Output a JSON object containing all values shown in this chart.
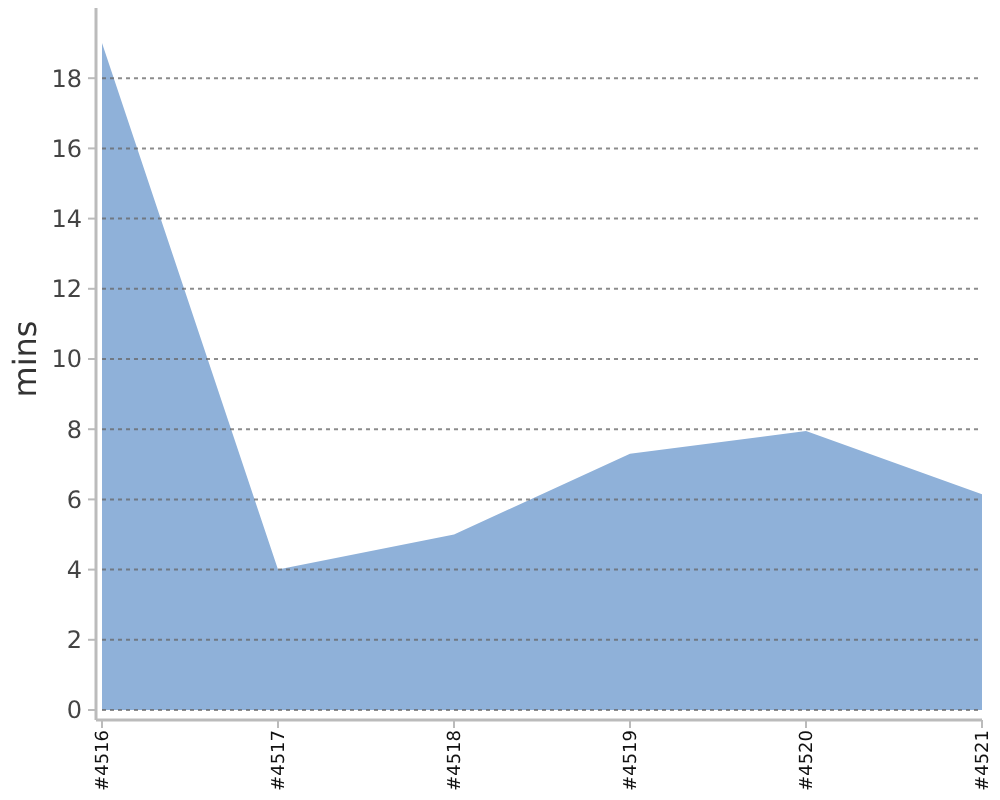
{
  "chart_data": {
    "type": "area",
    "ylabel": "mins",
    "categories": [
      "#4516",
      "#4517",
      "#4518",
      "#4519",
      "#4520",
      "#4521"
    ],
    "values": [
      19.0,
      4.0,
      5.0,
      7.3,
      7.95,
      6.15
    ],
    "color": "#8fb1d9",
    "ylim": [
      0,
      20
    ],
    "yticks": [
      0,
      2,
      4,
      6,
      8,
      10,
      12,
      14,
      16,
      18
    ],
    "grid": "y"
  }
}
